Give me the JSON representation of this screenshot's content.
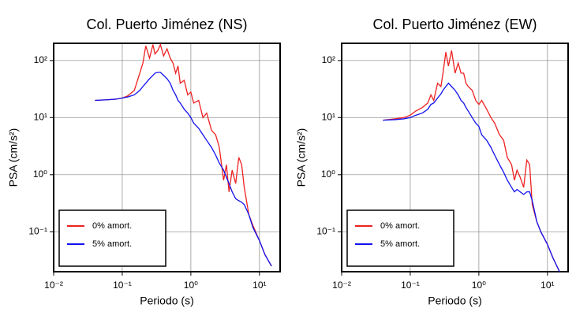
{
  "chart_data": [
    {
      "type": "line",
      "title": "Col. Puerto Jiménez (NS)",
      "x_label": "Periodo (s)",
      "y_label": "PSA (cm/s²)",
      "x": [
        0.04,
        0.06,
        0.08,
        0.1,
        0.12,
        0.15,
        0.18,
        0.2,
        0.22,
        0.25,
        0.28,
        0.3,
        0.33,
        0.36,
        0.4,
        0.45,
        0.5,
        0.55,
        0.6,
        0.65,
        0.7,
        0.8,
        0.9,
        1.0,
        1.1,
        1.3,
        1.5,
        1.7,
        2,
        2.3,
        2.6,
        3,
        3.3,
        3.6,
        4,
        4.5,
        5,
        5.5,
        6,
        7,
        8,
        10,
        12,
        15
      ],
      "series": [
        {
          "name": "0% amort.",
          "color": "#ee2222",
          "values": [
            20,
            20.5,
            21,
            22,
            24,
            30,
            60,
            90,
            180,
            110,
            190,
            130,
            150,
            190,
            120,
            160,
            110,
            90,
            60,
            80,
            40,
            45,
            25,
            28,
            18,
            20,
            10,
            12,
            6,
            5,
            3,
            0.8,
            1.5,
            0.5,
            1.2,
            0.7,
            2,
            1.5,
            0.6,
            0.2,
            0.13,
            0.07,
            0.04,
            0.025
          ]
        },
        {
          "name": "5% amort.",
          "color": "#1111ee",
          "values": [
            20,
            20.5,
            21,
            22,
            23,
            25,
            30,
            35,
            40,
            48,
            55,
            60,
            62,
            62,
            55,
            48,
            40,
            30,
            25,
            20,
            18,
            14,
            12,
            10,
            8,
            6.5,
            5,
            4,
            3,
            2.2,
            1.6,
            1.2,
            0.9,
            0.7,
            0.5,
            0.38,
            0.35,
            0.33,
            0.3,
            0.2,
            0.12,
            0.07,
            0.04,
            0.025
          ]
        }
      ],
      "log_x": true,
      "log_y": true,
      "grid": true,
      "legend": "lower left",
      "xlim": [
        0.01,
        20
      ],
      "ylim": [
        0.02,
        200
      ],
      "xticks": [
        {
          "value": 0.01,
          "label": "10⁻²"
        },
        {
          "value": 0.1,
          "label": "10⁻¹"
        },
        {
          "value": 1,
          "label": "10⁰"
        },
        {
          "value": 10,
          "label": "10¹"
        }
      ],
      "yticks": [
        {
          "value": 0.1,
          "label": "10⁻¹"
        },
        {
          "value": 1,
          "label": "10⁰"
        },
        {
          "value": 10,
          "label": "10¹"
        },
        {
          "value": 100,
          "label": "10²"
        }
      ]
    },
    {
      "type": "line",
      "title": "Col. Puerto Jiménez (EW)",
      "x_label": "Periodo (s)",
      "y_label": "PSA (cm/s²)",
      "x": [
        0.04,
        0.06,
        0.08,
        0.1,
        0.12,
        0.15,
        0.18,
        0.2,
        0.22,
        0.25,
        0.28,
        0.3,
        0.33,
        0.36,
        0.4,
        0.45,
        0.5,
        0.55,
        0.6,
        0.65,
        0.7,
        0.8,
        0.9,
        1.0,
        1.1,
        1.3,
        1.5,
        1.7,
        2,
        2.3,
        2.6,
        3,
        3.3,
        3.6,
        4,
        4.5,
        5,
        5.5,
        6,
        7,
        8,
        10,
        12,
        15
      ],
      "series": [
        {
          "name": "0% amort.",
          "color": "#ee2222",
          "values": [
            9,
            9.5,
            10,
            11,
            13,
            15,
            18,
            25,
            20,
            40,
            35,
            60,
            140,
            80,
            150,
            60,
            90,
            60,
            60,
            40,
            35,
            30,
            20,
            17,
            20,
            14,
            10,
            8,
            5,
            4,
            2,
            1.5,
            0.8,
            1.2,
            0.9,
            0.6,
            1.8,
            1.5,
            0.3,
            0.15,
            0.1,
            0.06,
            0.035,
            0.02
          ]
        },
        {
          "name": "5% amort.",
          "color": "#1111ee",
          "values": [
            9,
            9.2,
            9.5,
            10,
            11,
            12,
            14,
            17,
            18,
            22,
            26,
            30,
            35,
            40,
            35,
            30,
            25,
            20,
            18,
            15,
            13,
            10,
            8,
            7,
            5,
            4,
            3,
            2.2,
            1.5,
            1.1,
            0.8,
            0.6,
            0.5,
            0.55,
            0.5,
            0.45,
            0.5,
            0.5,
            0.35,
            0.15,
            0.1,
            0.06,
            0.035,
            0.02
          ]
        }
      ],
      "log_x": true,
      "log_y": true,
      "grid": true,
      "legend": "lower left",
      "xlim": [
        0.01,
        20
      ],
      "ylim": [
        0.02,
        200
      ],
      "xticks": [
        {
          "value": 0.01,
          "label": "10⁻²"
        },
        {
          "value": 0.1,
          "label": "10⁻¹"
        },
        {
          "value": 1,
          "label": "10⁰"
        },
        {
          "value": 10,
          "label": "10¹"
        }
      ],
      "yticks": [
        {
          "value": 0.1,
          "label": "10⁻¹"
        },
        {
          "value": 1,
          "label": "10⁰"
        },
        {
          "value": 10,
          "label": "10¹"
        },
        {
          "value": 100,
          "label": "10²"
        }
      ]
    }
  ]
}
